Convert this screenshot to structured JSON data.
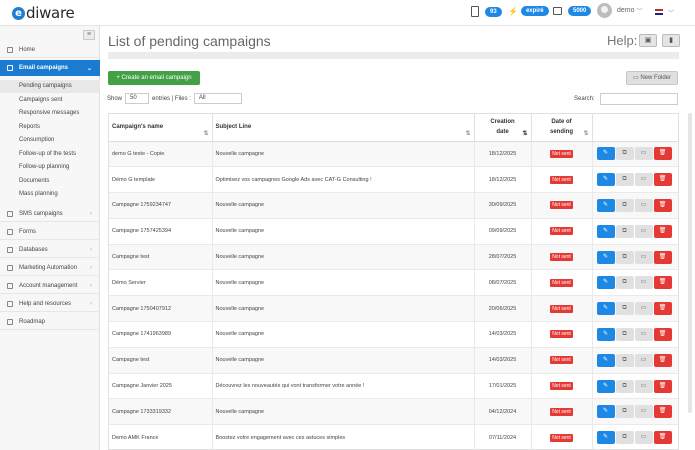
{
  "app": {
    "logo_mark": "e",
    "logo_text": "diware"
  },
  "topbar": {
    "phone_count": "93",
    "flash_badge": "expiré",
    "email_count": "5000",
    "user_name": "demo",
    "icons": [
      "phone-icon",
      "flash-icon",
      "email-stack-icon",
      "avatar",
      "flag-icon"
    ]
  },
  "sidebar": {
    "items": [
      {
        "label": "Home",
        "icon": "home-icon"
      },
      {
        "label": "Email campaigns",
        "icon": "envelope-icon"
      },
      {
        "label": "SMS campaigns",
        "icon": "sms-icon"
      },
      {
        "label": "Forms",
        "icon": "form-icon"
      },
      {
        "label": "Databases",
        "icon": "database-icon"
      },
      {
        "label": "Marketing Automation",
        "icon": "automation-icon"
      },
      {
        "label": "Account management",
        "icon": "user-icon"
      },
      {
        "label": "Help and resources",
        "icon": "help-icon"
      },
      {
        "label": "Roadmap",
        "icon": "roadmap-icon"
      }
    ],
    "email_subitems": [
      "Pending campaigns",
      "Campaigns sent",
      "Responsive messages",
      "Reports",
      "Consumption",
      "Follow-up of the tests",
      "Follow-up planning",
      "Documents",
      "Mass planning"
    ]
  },
  "main": {
    "title": "List of pending campaigns",
    "help_label": "Help:",
    "create_button": "+ Create an email campaign",
    "new_folder_button": "New Folder",
    "show_label": "Show",
    "show_value": "50",
    "entries_label": "entries | Files :",
    "files_value": "All",
    "search_label": "Search:",
    "search_value": ""
  },
  "table": {
    "headers": {
      "name": "Campaign's name",
      "subject": "Subject Line",
      "creation": "Creation date",
      "sending": "Date of sending"
    },
    "status_label": "Not sent",
    "rows": [
      {
        "name": "demo G texte - Copie",
        "subject": "Nouvelle campagne",
        "date": "18/12/2025"
      },
      {
        "name": "Démo G template",
        "subject": "Optimisez vos campagnes Google Ads avec CAT-G Consulting !",
        "date": "18/12/2025"
      },
      {
        "name": "Campagne 1759234747",
        "subject": "Nouvelle campagne",
        "date": "30/09/2025"
      },
      {
        "name": "Campagne 1757425394",
        "subject": "Nouvelle campagne",
        "date": "09/09/2025"
      },
      {
        "name": "Campagne test",
        "subject": "Nouvelle campagne",
        "date": "28/07/2025"
      },
      {
        "name": "Démo Servier",
        "subject": "Nouvelle campagne",
        "date": "08/07/2025"
      },
      {
        "name": "Campagne 1750407912",
        "subject": "Nouvelle campagne",
        "date": "20/06/2025"
      },
      {
        "name": "Campagne 1741963989",
        "subject": "Nouvelle campagne",
        "date": "14/03/2025"
      },
      {
        "name": "Campagne test",
        "subject": "Nouvelle campagne",
        "date": "14/03/2025"
      },
      {
        "name": "Campagne Janvier 2025",
        "subject": "Découvrez les nouveautés qui vont transformer votre année !",
        "date": "17/01/2025"
      },
      {
        "name": "Campagne 1733319332",
        "subject": "Nouvelle campagne",
        "date": "04/12/2024"
      },
      {
        "name": "Demo AMK France",
        "subject": "Boostez votre engagement avec ces astuces simples",
        "date": "07/11/2024"
      }
    ]
  },
  "colors": {
    "accent": "#1a7bd0",
    "create": "#43a047",
    "danger": "#e53935"
  }
}
